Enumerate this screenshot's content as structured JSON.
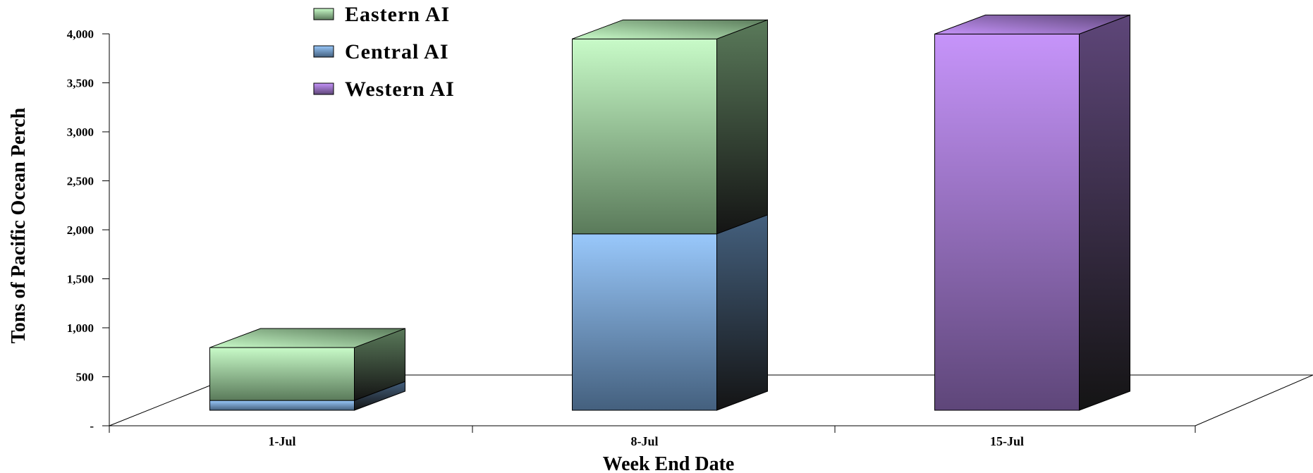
{
  "chart_data": {
    "type": "bar",
    "stacked": true,
    "three_d": true,
    "categories": [
      "1-Jul",
      "8-Jul",
      "15-Jul"
    ],
    "series": [
      {
        "name": "Western AI",
        "values": [
          0,
          0,
          3840
        ],
        "color": "#c694fa",
        "color_dark": "#5e4679"
      },
      {
        "name": "Central AI",
        "values": [
          100,
          1800,
          0
        ],
        "color": "#99c8fb",
        "color_dark": "#44607e"
      },
      {
        "name": "Eastern AI",
        "values": [
          540,
          1990,
          0
        ],
        "color": "#c8fbc8",
        "color_dark": "#5a7a5a"
      }
    ],
    "stack_order": [
      "Western AI",
      "Central AI",
      "Eastern AI"
    ],
    "legend_order": [
      "Eastern AI",
      "Central AI",
      "Western AI"
    ],
    "legend_position": "top-left",
    "ylabel": "Tons of Pacific Ocean Perch",
    "xlabel": "Week End Date",
    "ylim": [
      0,
      4000
    ],
    "yticks": [
      0,
      500,
      1000,
      1500,
      2000,
      2500,
      3000,
      3500,
      4000
    ],
    "ytick_labels": [
      "-",
      "500",
      "1,000",
      "1,500",
      "2,000",
      "2,500",
      "3,000",
      "3,500",
      "4,000"
    ],
    "grid": false
  }
}
